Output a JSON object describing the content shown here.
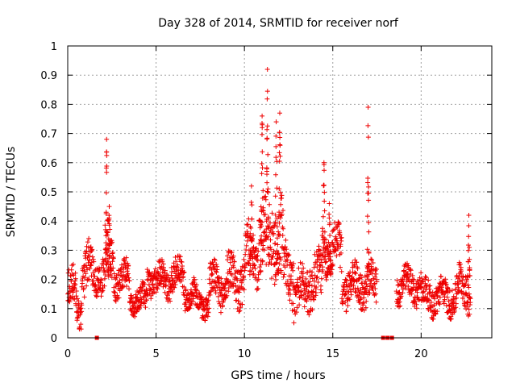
{
  "chart_data": {
    "type": "scatter",
    "title": "Day 328 of 2014, SRMTID for receiver norf",
    "xlabel": "GPS time / hours",
    "ylabel": "SRMTID / TECUs",
    "xlim": [
      0,
      24
    ],
    "ylim": [
      0,
      1
    ],
    "xticks": [
      0,
      5,
      10,
      15,
      20
    ],
    "yticks": [
      0,
      0.1,
      0.2,
      0.3,
      0.4,
      0.5,
      0.6,
      0.7,
      0.8,
      0.9,
      1
    ],
    "xtick_labels": [
      "0",
      "5",
      "10",
      "15",
      "20"
    ],
    "ytick_labels": [
      "0",
      "0.1",
      "0.2",
      "0.3",
      "0.4",
      "0.5",
      "0.6",
      "0.7",
      "0.8",
      "0.9",
      "1"
    ],
    "grid": true,
    "marker": "+",
    "color": "#ee0000",
    "zero_markers": [
      1.65,
      17.85,
      18.1,
      18.35
    ],
    "segments": [
      {
        "t0": 0.0,
        "t1": 0.5,
        "base": 0.16,
        "spread": 0.06
      },
      {
        "t0": 0.5,
        "t1": 0.8,
        "base": 0.1,
        "spread": 0.05
      },
      {
        "t0": 0.8,
        "t1": 1.2,
        "base": 0.22,
        "spread": 0.08
      },
      {
        "t0": 1.2,
        "t1": 2.1,
        "base": 0.22,
        "spread": 0.06
      },
      {
        "t0": 2.1,
        "t1": 2.6,
        "base": 0.28,
        "spread": 0.08
      },
      {
        "t0": 2.6,
        "t1": 3.5,
        "base": 0.2,
        "spread": 0.05
      },
      {
        "t0": 3.5,
        "t1": 4.5,
        "base": 0.13,
        "spread": 0.04
      },
      {
        "t0": 4.5,
        "t1": 5.8,
        "base": 0.2,
        "spread": 0.05
      },
      {
        "t0": 5.8,
        "t1": 6.6,
        "base": 0.21,
        "spread": 0.05
      },
      {
        "t0": 6.6,
        "t1": 7.2,
        "base": 0.15,
        "spread": 0.04
      },
      {
        "t0": 7.2,
        "t1": 8.0,
        "base": 0.12,
        "spread": 0.04
      },
      {
        "t0": 8.0,
        "t1": 9.0,
        "base": 0.18,
        "spread": 0.06
      },
      {
        "t0": 9.0,
        "t1": 10.0,
        "base": 0.2,
        "spread": 0.07
      },
      {
        "t0": 10.0,
        "t1": 10.8,
        "base": 0.28,
        "spread": 0.08
      },
      {
        "t0": 10.8,
        "t1": 12.2,
        "base": 0.35,
        "spread": 0.12
      },
      {
        "t0": 12.2,
        "t1": 12.8,
        "base": 0.22,
        "spread": 0.08
      },
      {
        "t0": 12.8,
        "t1": 13.5,
        "base": 0.15,
        "spread": 0.07
      },
      {
        "t0": 13.5,
        "t1": 14.4,
        "base": 0.2,
        "spread": 0.08
      },
      {
        "t0": 14.4,
        "t1": 15.5,
        "base": 0.3,
        "spread": 0.07
      },
      {
        "t0": 15.5,
        "t1": 16.6,
        "base": 0.18,
        "spread": 0.06
      },
      {
        "t0": 16.6,
        "t1": 17.5,
        "base": 0.18,
        "spread": 0.06
      },
      {
        "t0": 18.6,
        "t1": 20.0,
        "base": 0.18,
        "spread": 0.05
      },
      {
        "t0": 20.0,
        "t1": 21.0,
        "base": 0.14,
        "spread": 0.05
      },
      {
        "t0": 21.0,
        "t1": 22.0,
        "base": 0.14,
        "spread": 0.05
      },
      {
        "t0": 22.0,
        "t1": 22.8,
        "base": 0.17,
        "spread": 0.06
      }
    ],
    "spikes": [
      {
        "t": 2.2,
        "peak": 0.68,
        "width": 0.06
      },
      {
        "t": 2.35,
        "peak": 0.45,
        "width": 0.06
      },
      {
        "t": 10.4,
        "peak": 0.52,
        "width": 0.1
      },
      {
        "t": 11.0,
        "peak": 0.76,
        "width": 0.08
      },
      {
        "t": 11.3,
        "peak": 0.92,
        "width": 0.08
      },
      {
        "t": 11.8,
        "peak": 0.74,
        "width": 0.1
      },
      {
        "t": 12.0,
        "peak": 0.77,
        "width": 0.08
      },
      {
        "t": 14.5,
        "peak": 0.6,
        "width": 0.1
      },
      {
        "t": 14.8,
        "peak": 0.46,
        "width": 0.1
      },
      {
        "t": 17.0,
        "peak": 0.79,
        "width": 0.06
      },
      {
        "t": 22.7,
        "peak": 0.42,
        "width": 0.06
      }
    ]
  }
}
